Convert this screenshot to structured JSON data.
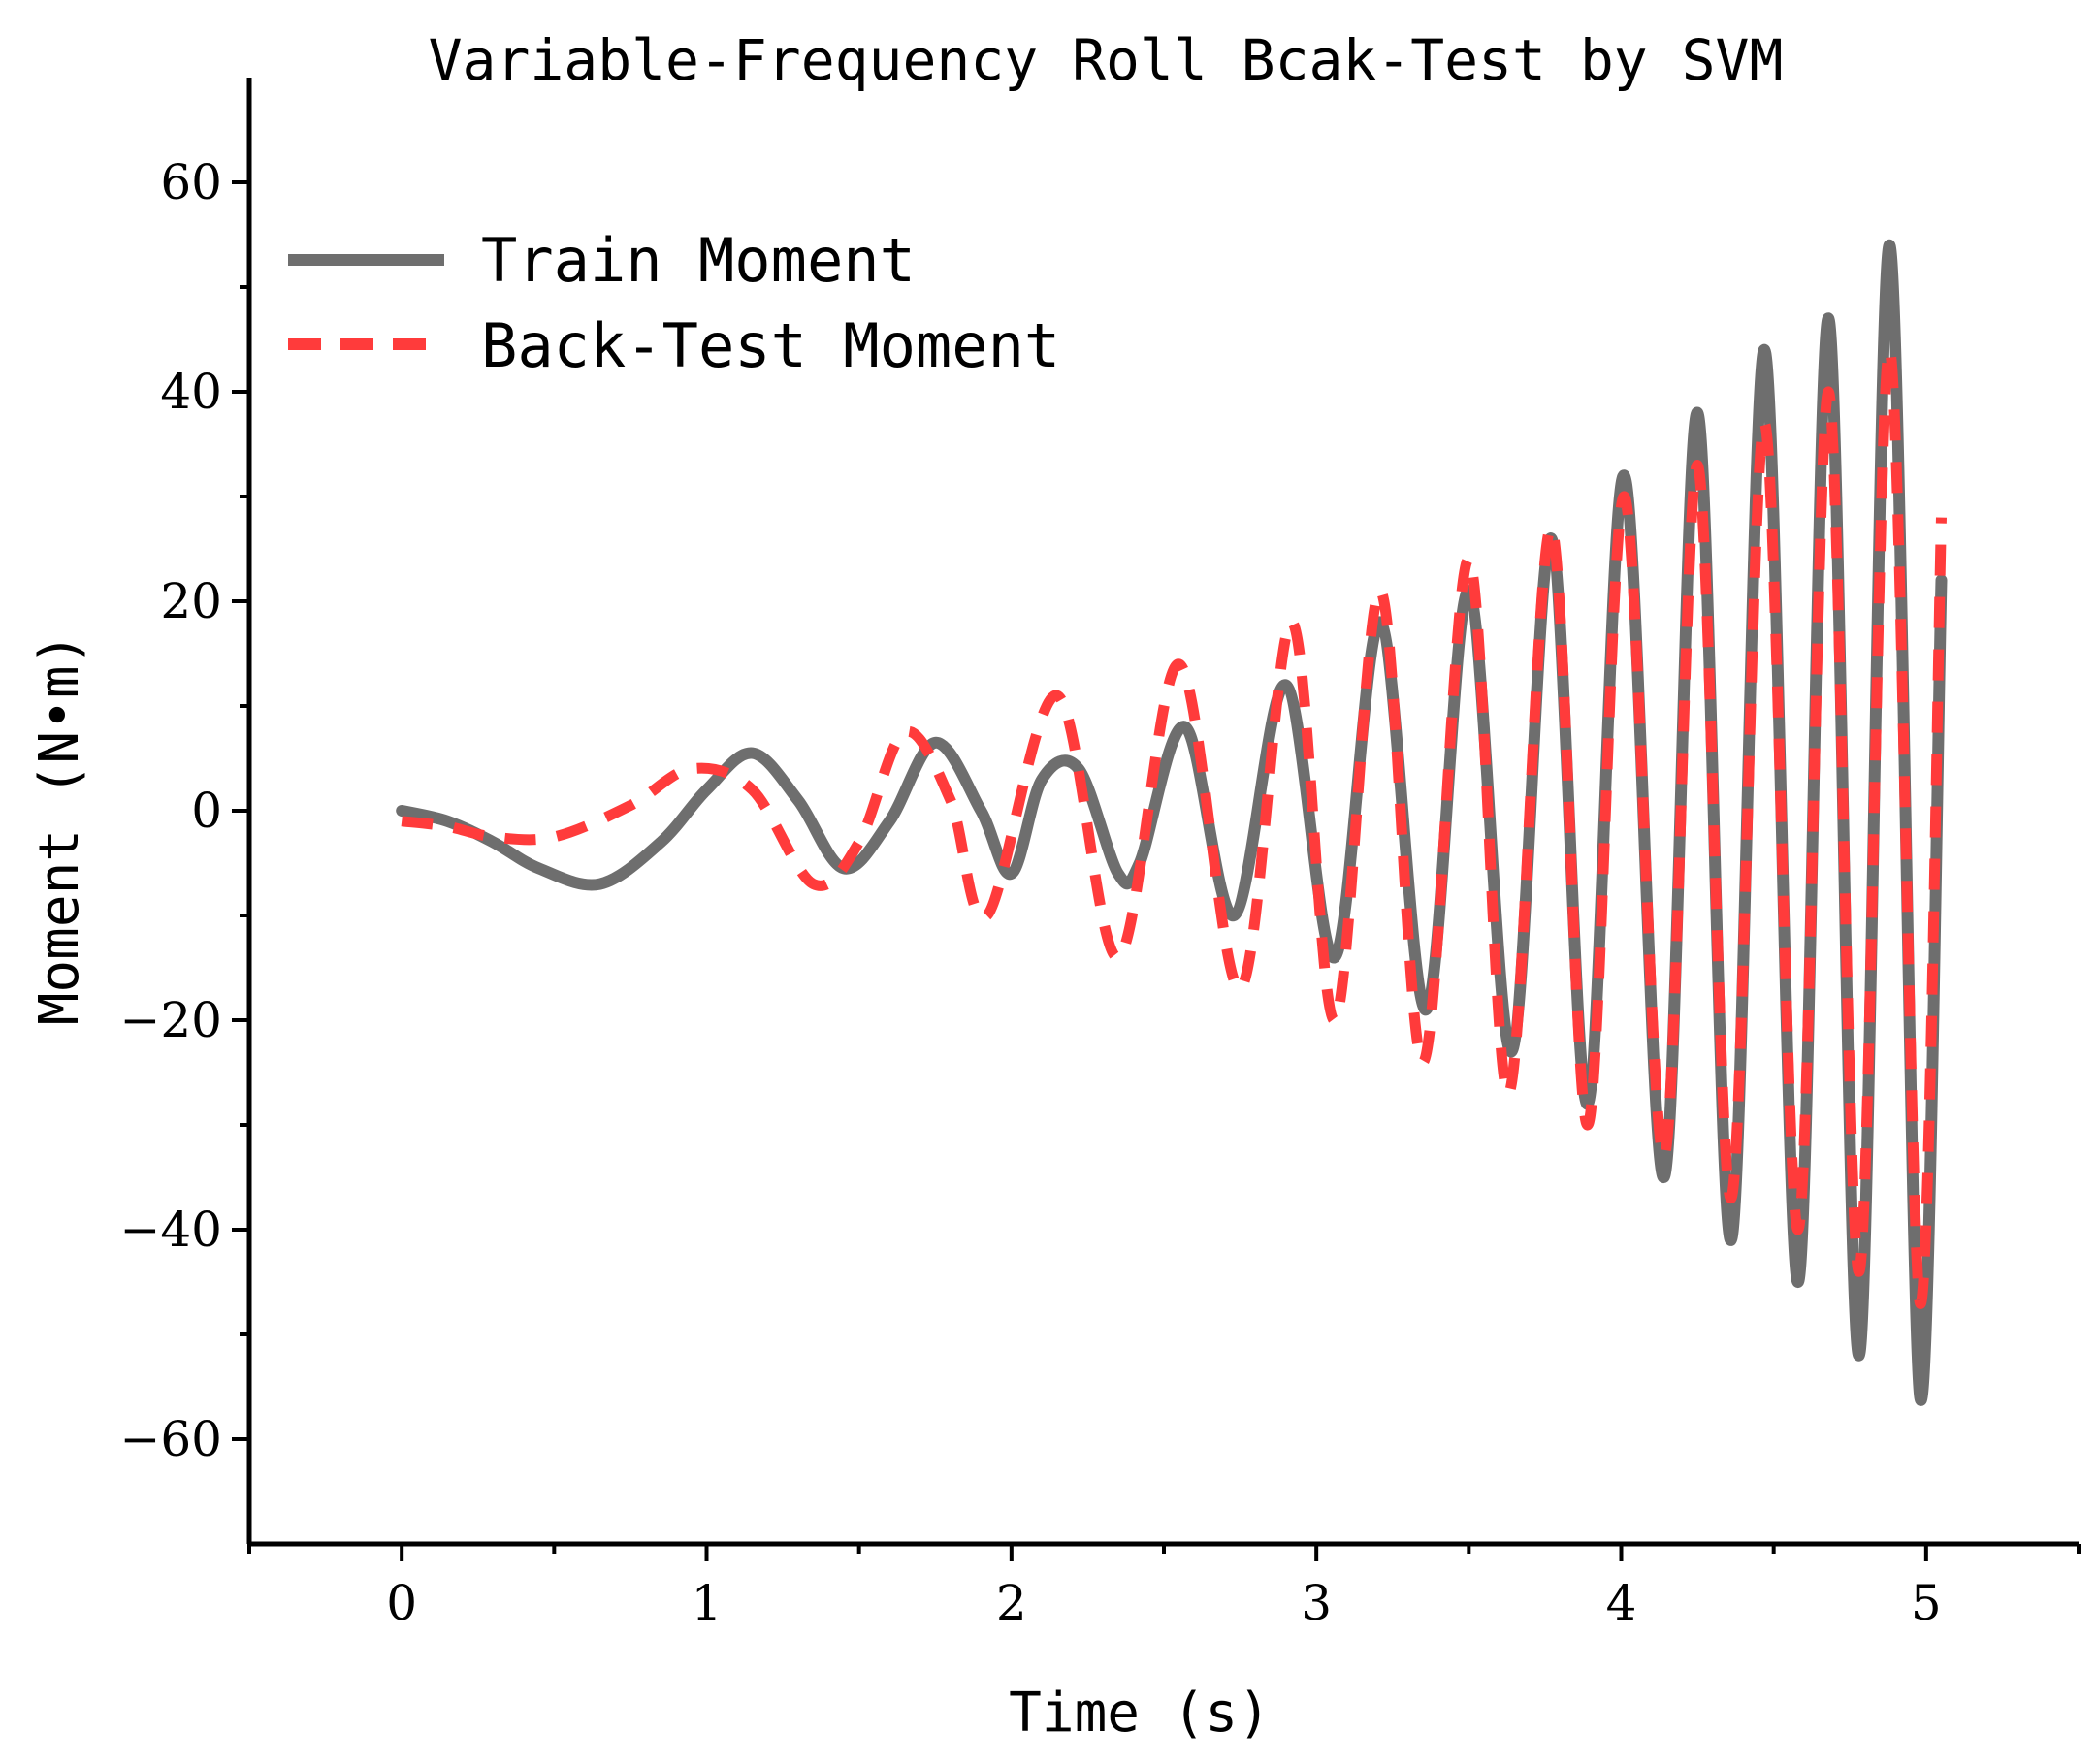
{
  "chart_data": {
    "type": "line",
    "title": "Variable-Frequency Roll Bcak-Test by SVM",
    "xlabel": "Time (s)",
    "ylabel": "Moment (N•m)",
    "xlim": [
      -0.5,
      5.5
    ],
    "ylim": [
      -70,
      70
    ],
    "xticks": [
      0,
      1,
      2,
      3,
      4,
      5
    ],
    "xtick_labels": [
      "0",
      "1",
      "2",
      "3",
      "4",
      "5"
    ],
    "yticks": [
      -60,
      -40,
      -20,
      0,
      20,
      40,
      60
    ],
    "ytick_labels": [
      "−60",
      "−40",
      "−20",
      "0",
      "20",
      "40",
      "60"
    ],
    "legend_position": "top-left",
    "series": [
      {
        "name": "Train Moment",
        "color": "#6e6e6e",
        "style": "solid",
        "x": [
          0,
          0.15,
          0.3,
          0.45,
          0.65,
          0.85,
          1.0,
          1.15,
          1.3,
          1.45,
          1.6,
          1.75,
          1.9,
          2.0,
          2.1,
          2.22,
          2.35,
          2.42,
          2.57,
          2.73,
          2.9,
          3.06,
          3.21,
          3.36,
          3.5,
          3.64,
          3.77,
          3.89,
          4.01,
          4.14,
          4.25,
          4.36,
          4.47,
          4.58,
          4.68,
          4.78,
          4.88,
          4.98,
          5.05
        ],
        "y": [
          0,
          -1,
          -3,
          -5.5,
          -7,
          -3,
          2,
          5.5,
          1,
          -5.5,
          -1,
          6.5,
          0,
          -6,
          3,
          4,
          -6,
          -5,
          8,
          -10,
          12,
          -14,
          18,
          -19,
          21,
          -23,
          26,
          -28,
          32,
          -35,
          38,
          -41,
          44,
          -45,
          47,
          -52,
          54,
          -56,
          22
        ]
      },
      {
        "name": "Back-Test Moment",
        "color": "#ff3b3b",
        "style": "dashed",
        "x": [
          0,
          0.15,
          0.3,
          0.5,
          0.75,
          0.95,
          1.15,
          1.35,
          1.5,
          1.65,
          1.8,
          1.92,
          2.15,
          2.35,
          2.55,
          2.75,
          2.92,
          3.06,
          3.21,
          3.35,
          3.5,
          3.63,
          3.77,
          3.89,
          4.01,
          4.14,
          4.25,
          4.36,
          4.47,
          4.58,
          4.68,
          4.78,
          4.88,
          4.98,
          5.05
        ],
        "y": [
          -1,
          -1.5,
          -2.5,
          -2.5,
          0.5,
          4,
          2,
          -7,
          -3,
          7.5,
          1,
          -10,
          11,
          -14,
          14,
          -17,
          18,
          -20,
          21,
          -24,
          24,
          -27,
          27,
          -30,
          30,
          -33,
          33,
          -37,
          37,
          -40,
          40,
          -44,
          44,
          -47,
          28
        ]
      }
    ]
  }
}
